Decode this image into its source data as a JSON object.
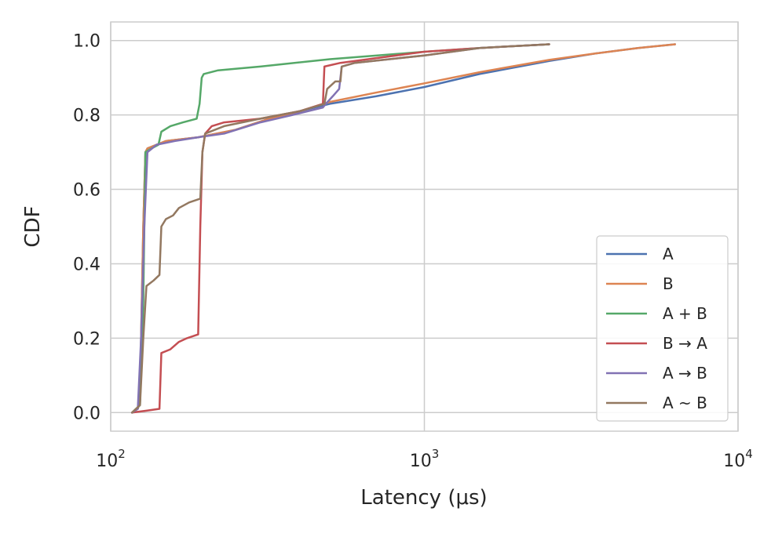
{
  "chart_data": {
    "type": "line",
    "xlabel": "Latency (μs)",
    "ylabel": "CDF",
    "xscale": "log",
    "xlim": [
      100,
      10000
    ],
    "ylim": [
      -0.05,
      1.05
    ],
    "grid": true,
    "legend_position": "lower-right",
    "x_ticks": [
      {
        "value": 100,
        "base": "10",
        "exp": "2"
      },
      {
        "value": 1000,
        "base": "10",
        "exp": "3"
      },
      {
        "value": 10000,
        "base": "10",
        "exp": "4"
      }
    ],
    "y_ticks": [
      {
        "value": 0.0,
        "label": "0.0"
      },
      {
        "value": 0.2,
        "label": "0.2"
      },
      {
        "value": 0.4,
        "label": "0.4"
      },
      {
        "value": 0.6,
        "label": "0.6"
      },
      {
        "value": 0.8,
        "label": "0.8"
      },
      {
        "value": 1.0,
        "label": "1.0"
      }
    ],
    "series": [
      {
        "name": "A",
        "color": "#4c72b0",
        "points": [
          [
            117,
            0.0
          ],
          [
            122,
            0.01
          ],
          [
            124,
            0.03
          ],
          [
            125,
            0.2
          ],
          [
            127,
            0.5
          ],
          [
            129,
            0.7
          ],
          [
            131,
            0.71
          ],
          [
            150,
            0.73
          ],
          [
            190,
            0.74
          ],
          [
            250,
            0.76
          ],
          [
            320,
            0.79
          ],
          [
            400,
            0.81
          ],
          [
            500,
            0.83
          ],
          [
            700,
            0.85
          ],
          [
            1000,
            0.875
          ],
          [
            1500,
            0.91
          ],
          [
            2500,
            0.945
          ],
          [
            3500,
            0.965
          ],
          [
            4800,
            0.98
          ],
          [
            6300,
            0.99
          ]
        ]
      },
      {
        "name": "B",
        "color": "#dd8452",
        "points": [
          [
            117,
            0.0
          ],
          [
            122,
            0.01
          ],
          [
            124,
            0.03
          ],
          [
            125,
            0.2
          ],
          [
            127,
            0.5
          ],
          [
            129,
            0.7
          ],
          [
            131,
            0.71
          ],
          [
            150,
            0.73
          ],
          [
            190,
            0.74
          ],
          [
            250,
            0.76
          ],
          [
            320,
            0.79
          ],
          [
            400,
            0.81
          ],
          [
            500,
            0.835
          ],
          [
            700,
            0.86
          ],
          [
            1000,
            0.885
          ],
          [
            1500,
            0.915
          ],
          [
            2500,
            0.948
          ],
          [
            3500,
            0.965
          ],
          [
            4800,
            0.98
          ],
          [
            6300,
            0.99
          ]
        ]
      },
      {
        "name": "A + B",
        "color": "#55a868",
        "points": [
          [
            117,
            0.0
          ],
          [
            124,
            0.02
          ],
          [
            127,
            0.3
          ],
          [
            129,
            0.7
          ],
          [
            135,
            0.71
          ],
          [
            142,
            0.72
          ],
          [
            145,
            0.755
          ],
          [
            155,
            0.77
          ],
          [
            170,
            0.78
          ],
          [
            188,
            0.79
          ],
          [
            192,
            0.83
          ],
          [
            195,
            0.9
          ],
          [
            198,
            0.91
          ],
          [
            220,
            0.92
          ],
          [
            300,
            0.93
          ],
          [
            500,
            0.95
          ],
          [
            1000,
            0.97
          ],
          [
            1500,
            0.98
          ],
          [
            2500,
            0.99
          ]
        ]
      },
      {
        "name": "B → A",
        "color": "#c44e52",
        "points": [
          [
            117,
            0.0
          ],
          [
            130,
            0.005
          ],
          [
            143,
            0.01
          ],
          [
            145,
            0.16
          ],
          [
            155,
            0.17
          ],
          [
            165,
            0.19
          ],
          [
            175,
            0.2
          ],
          [
            190,
            0.21
          ],
          [
            193,
            0.5
          ],
          [
            196,
            0.7
          ],
          [
            200,
            0.75
          ],
          [
            210,
            0.77
          ],
          [
            230,
            0.78
          ],
          [
            300,
            0.79
          ],
          [
            400,
            0.81
          ],
          [
            475,
            0.83
          ],
          [
            478,
            0.89
          ],
          [
            480,
            0.93
          ],
          [
            540,
            0.94
          ],
          [
            1000,
            0.97
          ],
          [
            1500,
            0.98
          ],
          [
            2500,
            0.99
          ]
        ]
      },
      {
        "name": "A → B",
        "color": "#8172b3",
        "points": [
          [
            117,
            0.0
          ],
          [
            122,
            0.01
          ],
          [
            125,
            0.2
          ],
          [
            128,
            0.5
          ],
          [
            131,
            0.7
          ],
          [
            140,
            0.72
          ],
          [
            160,
            0.73
          ],
          [
            190,
            0.74
          ],
          [
            230,
            0.75
          ],
          [
            300,
            0.78
          ],
          [
            380,
            0.8
          ],
          [
            475,
            0.82
          ],
          [
            485,
            0.83
          ],
          [
            510,
            0.85
          ],
          [
            535,
            0.87
          ],
          [
            545,
            0.93
          ],
          [
            600,
            0.94
          ],
          [
            1000,
            0.96
          ],
          [
            1500,
            0.98
          ],
          [
            2500,
            0.99
          ]
        ]
      },
      {
        "name": "A ~ B",
        "color": "#937860",
        "points": [
          [
            117,
            0.0
          ],
          [
            124,
            0.02
          ],
          [
            127,
            0.2
          ],
          [
            130,
            0.34
          ],
          [
            137,
            0.355
          ],
          [
            143,
            0.37
          ],
          [
            145,
            0.5
          ],
          [
            150,
            0.52
          ],
          [
            158,
            0.53
          ],
          [
            165,
            0.55
          ],
          [
            178,
            0.565
          ],
          [
            193,
            0.575
          ],
          [
            196,
            0.7
          ],
          [
            200,
            0.75
          ],
          [
            230,
            0.77
          ],
          [
            300,
            0.79
          ],
          [
            400,
            0.81
          ],
          [
            480,
            0.83
          ],
          [
            490,
            0.87
          ],
          [
            520,
            0.89
          ],
          [
            540,
            0.89
          ],
          [
            545,
            0.93
          ],
          [
            600,
            0.94
          ],
          [
            1000,
            0.96
          ],
          [
            1500,
            0.98
          ],
          [
            2500,
            0.99
          ]
        ]
      }
    ]
  }
}
